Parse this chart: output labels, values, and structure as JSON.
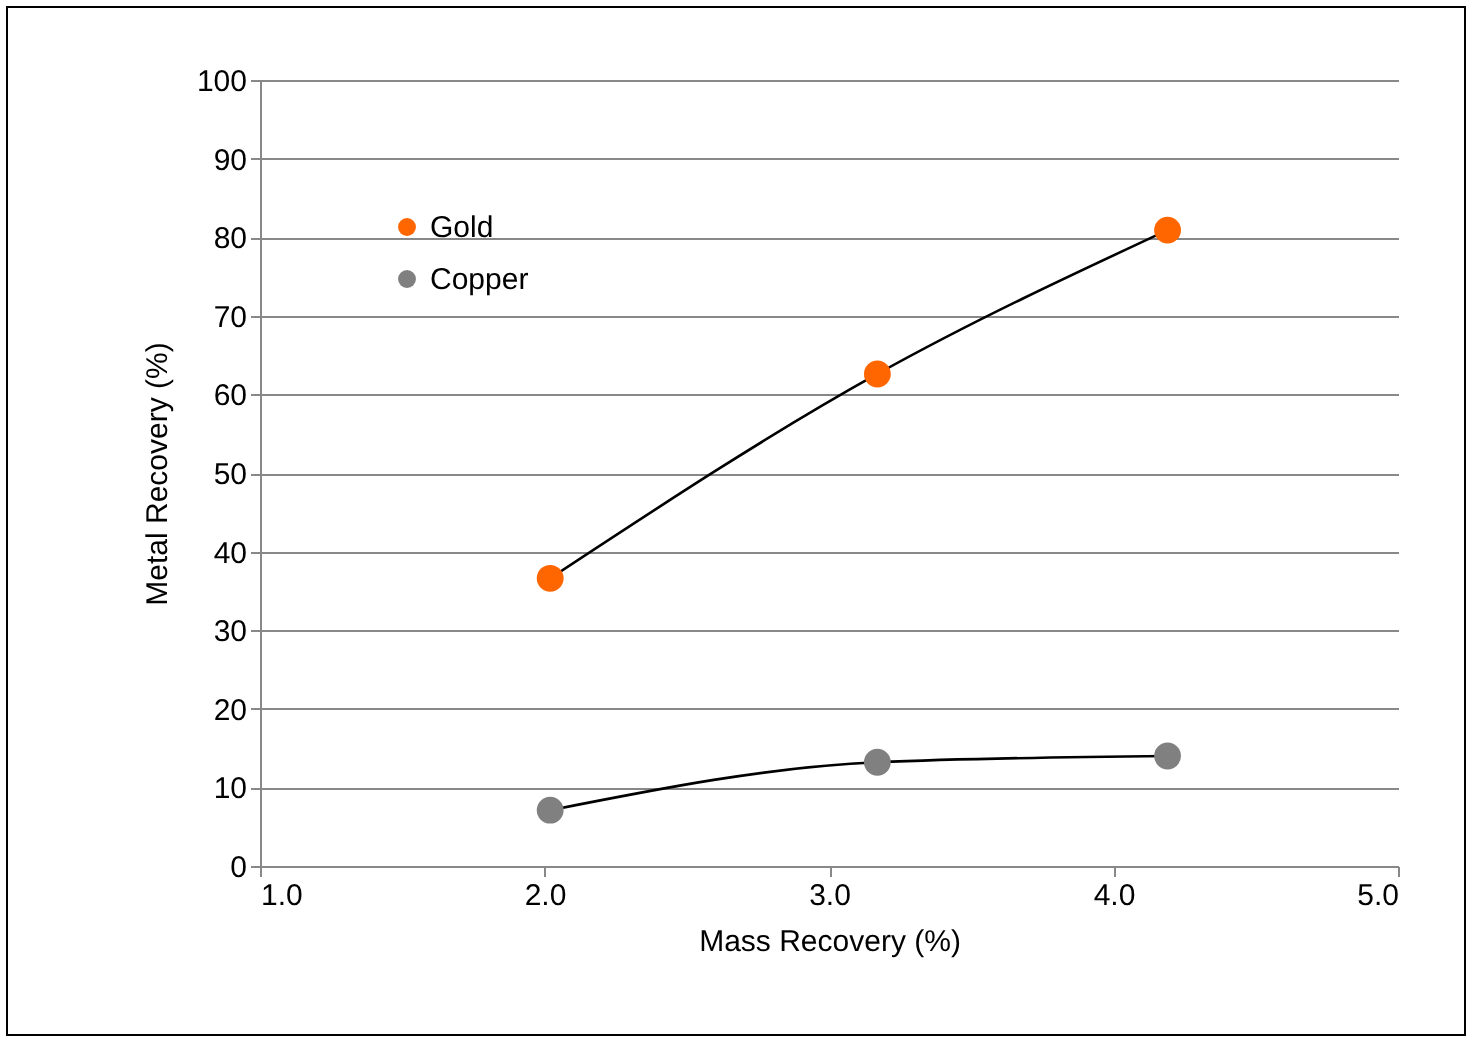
{
  "chart_data": {
    "type": "line",
    "xlabel": "Mass Recovery (%)",
    "ylabel": "Metal Recovery (%)",
    "xlim": [
      1.0,
      5.0
    ],
    "xticks": [
      {
        "value": 1,
        "label": "1.0"
      },
      {
        "value": 2,
        "label": "2.0"
      },
      {
        "value": 3,
        "label": "3.0"
      },
      {
        "value": 4,
        "label": "4.0"
      },
      {
        "value": 5,
        "label": "5.0"
      }
    ],
    "ylim": [
      0,
      100
    ],
    "yticks": [
      0,
      10,
      20,
      30,
      40,
      50,
      60,
      70,
      80,
      90,
      100
    ],
    "grid": "y",
    "legend": "top left",
    "marker": "circle",
    "line_style": "solid",
    "series": [
      {
        "name": "Gold",
        "color": "#ff6600",
        "x": [
          2.02,
          3.17,
          4.19
        ],
        "values": [
          36.6,
          62.6,
          80.9
        ]
      },
      {
        "name": "Copper",
        "color": "#808080",
        "x": [
          2.02,
          3.17,
          4.19
        ],
        "values": [
          7.1,
          13.2,
          14.0
        ]
      }
    ]
  }
}
